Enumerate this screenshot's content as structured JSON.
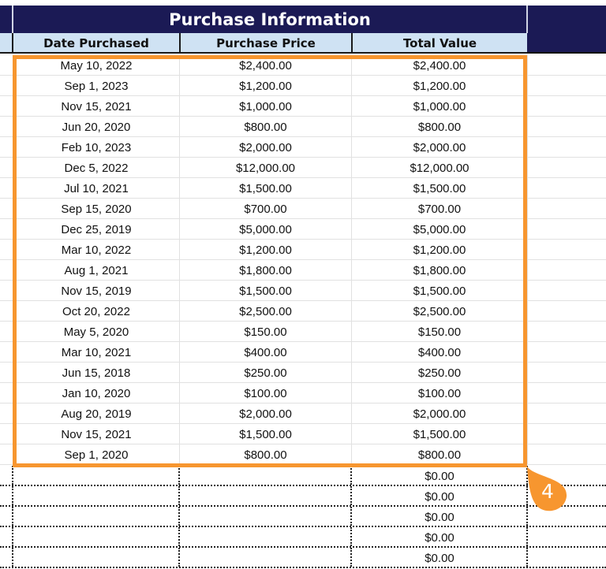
{
  "sheet": {
    "group_title": "Purchase Information",
    "columns": [
      "Date Purchased",
      "Purchase Price",
      "Total Value"
    ],
    "rows": [
      {
        "date": "May 10, 2022",
        "price": "$2,400.00",
        "total": "$2,400.00"
      },
      {
        "date": "Sep 1, 2023",
        "price": "$1,200.00",
        "total": "$1,200.00"
      },
      {
        "date": "Nov 15, 2021",
        "price": "$1,000.00",
        "total": "$1,000.00"
      },
      {
        "date": "Jun 20, 2020",
        "price": "$800.00",
        "total": "$800.00"
      },
      {
        "date": "Feb 10, 2023",
        "price": "$2,000.00",
        "total": "$2,000.00"
      },
      {
        "date": "Dec 5, 2022",
        "price": "$12,000.00",
        "total": "$12,000.00"
      },
      {
        "date": "Jul 10, 2021",
        "price": "$1,500.00",
        "total": "$1,500.00"
      },
      {
        "date": "Sep 15, 2020",
        "price": "$700.00",
        "total": "$700.00"
      },
      {
        "date": "Dec 25, 2019",
        "price": "$5,000.00",
        "total": "$5,000.00"
      },
      {
        "date": "Mar 10, 2022",
        "price": "$1,200.00",
        "total": "$1,200.00"
      },
      {
        "date": "Aug 1, 2021",
        "price": "$1,800.00",
        "total": "$1,800.00"
      },
      {
        "date": "Nov 15, 2019",
        "price": "$1,500.00",
        "total": "$1,500.00"
      },
      {
        "date": "Oct 20, 2022",
        "price": "$2,500.00",
        "total": "$2,500.00"
      },
      {
        "date": "May 5, 2020",
        "price": "$150.00",
        "total": "$150.00"
      },
      {
        "date": "Mar 10, 2021",
        "price": "$400.00",
        "total": "$400.00"
      },
      {
        "date": "Jun 15, 2018",
        "price": "$250.00",
        "total": "$250.00"
      },
      {
        "date": "Jan 10, 2020",
        "price": "$100.00",
        "total": "$100.00"
      },
      {
        "date": "Aug 20, 2019",
        "price": "$2,000.00",
        "total": "$2,000.00"
      },
      {
        "date": "Nov 15, 2021",
        "price": "$1,500.00",
        "total": "$1,500.00"
      },
      {
        "date": "Sep 1, 2020",
        "price": "$800.00",
        "total": "$800.00"
      }
    ],
    "empty_rows": [
      {
        "total": "$0.00"
      },
      {
        "total": "$0.00"
      },
      {
        "total": "$0.00"
      },
      {
        "total": "$0.00"
      },
      {
        "total": "$0.00"
      }
    ]
  },
  "annotation": {
    "step_number": "4",
    "color": "#f7962f"
  },
  "colors": {
    "title_bg": "#1b1a55",
    "header_bg": "#cfe2f3",
    "highlight": "#f7962f"
  }
}
